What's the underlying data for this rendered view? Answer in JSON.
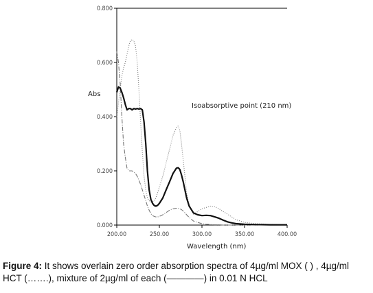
{
  "chart_data": {
    "type": "line",
    "ylabel": "Abs",
    "xlabel": "Wavelength (nm)",
    "xlim": [
      200,
      400
    ],
    "ylim": [
      0,
      0.8
    ],
    "xticks": [
      "200.00",
      "250.00",
      "300.00",
      "350.00",
      "400.00"
    ],
    "yticks": [
      "0.000",
      "0.200",
      "0.400",
      "0.600",
      "0.800"
    ],
    "grid": false,
    "annotation": "Isoabsorptive point (210 nm)",
    "series": [
      {
        "style": "solid",
        "x": [
          200,
          202,
          204,
          206,
          208,
          210,
          212,
          214,
          216,
          218,
          220,
          222,
          224,
          226,
          228,
          230,
          232,
          234,
          236,
          238,
          240,
          242,
          244,
          246,
          248,
          250,
          254,
          258,
          262,
          266,
          270,
          272,
          274,
          276,
          278,
          280,
          282,
          285,
          290,
          295,
          300,
          305,
          310,
          315,
          320,
          325,
          330,
          335,
          340,
          350,
          360,
          380,
          400
        ],
        "y": [
          0.49,
          0.51,
          0.505,
          0.49,
          0.47,
          0.445,
          0.425,
          0.43,
          0.43,
          0.425,
          0.43,
          0.428,
          0.43,
          0.428,
          0.43,
          0.425,
          0.38,
          0.3,
          0.2,
          0.13,
          0.095,
          0.08,
          0.072,
          0.07,
          0.073,
          0.08,
          0.1,
          0.13,
          0.16,
          0.19,
          0.21,
          0.212,
          0.205,
          0.185,
          0.16,
          0.13,
          0.1,
          0.07,
          0.045,
          0.038,
          0.035,
          0.036,
          0.035,
          0.03,
          0.025,
          0.018,
          0.012,
          0.008,
          0.005,
          0.003,
          0.002,
          0.001,
          0.001
        ]
      },
      {
        "style": "dotted",
        "x": [
          200,
          202,
          204,
          206,
          208,
          210,
          212,
          214,
          216,
          218,
          220,
          222,
          224,
          226,
          228,
          230,
          232,
          234,
          236,
          238,
          240,
          242,
          244,
          246,
          248,
          250,
          254,
          258,
          262,
          266,
          270,
          272,
          274,
          276,
          278,
          280,
          282,
          285,
          290,
          295,
          300,
          305,
          310,
          315,
          320,
          325,
          330,
          335,
          340,
          350,
          360,
          380,
          400
        ],
        "y": [
          0.4,
          0.45,
          0.5,
          0.55,
          0.58,
          0.6,
          0.63,
          0.66,
          0.68,
          0.685,
          0.68,
          0.66,
          0.6,
          0.5,
          0.38,
          0.27,
          0.18,
          0.13,
          0.1,
          0.09,
          0.085,
          0.085,
          0.09,
          0.1,
          0.12,
          0.14,
          0.18,
          0.23,
          0.28,
          0.33,
          0.36,
          0.365,
          0.35,
          0.3,
          0.24,
          0.18,
          0.12,
          0.07,
          0.04,
          0.05,
          0.06,
          0.065,
          0.07,
          0.068,
          0.06,
          0.05,
          0.04,
          0.03,
          0.02,
          0.01,
          0.006,
          0.003,
          0.002
        ]
      },
      {
        "style": "dashdot",
        "x": [
          200,
          202,
          204,
          206,
          208,
          210,
          212,
          214,
          216,
          218,
          220,
          222,
          224,
          226,
          228,
          230,
          232,
          234,
          236,
          238,
          240,
          242,
          244,
          246,
          248,
          250,
          254,
          258,
          262,
          266,
          270,
          272,
          274,
          276,
          278,
          280,
          282,
          285,
          290,
          295,
          300,
          305,
          310,
          315,
          320,
          325,
          330,
          335,
          340,
          350,
          360,
          380,
          400
        ],
        "y": [
          0.64,
          0.6,
          0.52,
          0.4,
          0.3,
          0.25,
          0.21,
          0.2,
          0.2,
          0.2,
          0.195,
          0.19,
          0.18,
          0.165,
          0.15,
          0.13,
          0.11,
          0.09,
          0.07,
          0.055,
          0.042,
          0.035,
          0.032,
          0.03,
          0.03,
          0.032,
          0.038,
          0.046,
          0.055,
          0.06,
          0.062,
          0.062,
          0.06,
          0.057,
          0.052,
          0.045,
          0.038,
          0.028,
          0.015,
          0.01,
          0.005,
          0.003,
          0.002,
          0.001,
          0.001,
          0,
          0,
          0,
          0,
          0,
          0,
          0,
          0
        ]
      }
    ]
  },
  "caption": {
    "label": "Figure 4:",
    "text": " It shows overlain zero order absorption spectra of 4µg/ml MOX (   )  , 4µg/ml HCT (…….), mixture of 2µg/ml of each (————) in 0.01 N HCL"
  }
}
